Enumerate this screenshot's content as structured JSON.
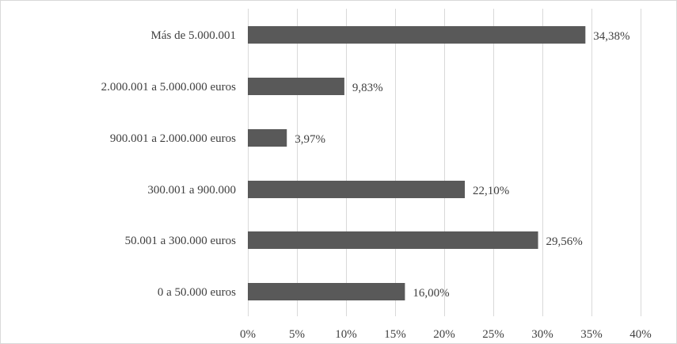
{
  "chart_data": {
    "type": "bar",
    "orientation": "horizontal",
    "categories": [
      "Más de 5.000.001",
      "2.000.001 a 5.000.000 euros",
      "900.001 a 2.000.000 euros",
      "300.001 a 900.000",
      "50.001 a 300.000 euros",
      "0 a 50.000 euros"
    ],
    "values": [
      34.38,
      9.83,
      3.97,
      22.1,
      29.56,
      16.0
    ],
    "data_labels": [
      "34,38%",
      "9,83%",
      "3,97%",
      "22,10%",
      "29,56%",
      "16,00%"
    ],
    "x_ticks": [
      0,
      5,
      10,
      15,
      20,
      25,
      30,
      35,
      40
    ],
    "x_tick_labels": [
      "0%",
      "5%",
      "10%",
      "15%",
      "20%",
      "25%",
      "30%",
      "35%",
      "40%"
    ],
    "xlim": [
      0,
      40
    ],
    "grid": "vertical",
    "legend": "none",
    "bar_color": "#595959",
    "title": "",
    "xlabel": "",
    "ylabel": ""
  }
}
